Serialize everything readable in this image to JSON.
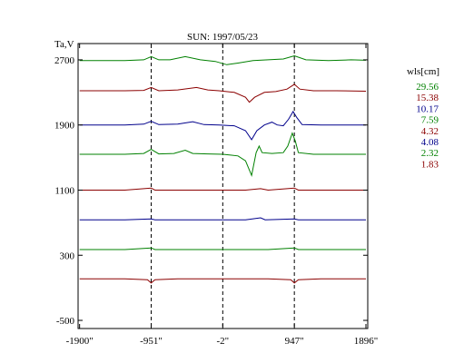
{
  "chart_data": {
    "type": "line",
    "title": "SUN: 1997/05/23",
    "ylabel": "Ta,V",
    "xlabel": "",
    "xlim": [
      -1920,
      1920
    ],
    "ylim": [
      -600,
      2900
    ],
    "xticks": [
      -1900,
      -951,
      -2,
      947,
      1896
    ],
    "xtick_labels": [
      "-1900\"",
      "-951\"",
      "-2\"",
      "947\"",
      "1896\""
    ],
    "yticks": [
      2700,
      1900,
      1100,
      300,
      -500
    ],
    "ytick_labels": [
      "2700",
      "1900",
      "1100",
      "300",
      "-500"
    ],
    "vlines": [
      -951,
      -2,
      947
    ],
    "grid": false,
    "legend": {
      "title": "wls[cm]",
      "placement": "right",
      "entries": [
        {
          "label": "29.56",
          "color": "#008000"
        },
        {
          "label": "15.38",
          "color": "#8b0000"
        },
        {
          "label": "10.17",
          "color": "#00008b"
        },
        {
          "label": "7.59",
          "color": "#008000"
        },
        {
          "label": "4.32",
          "color": "#8b0000"
        },
        {
          "label": "4.08",
          "color": "#00008b"
        },
        {
          "label": "2.32",
          "color": "#008000"
        },
        {
          "label": "1.83",
          "color": "#8b0000"
        }
      ]
    },
    "series": [
      {
        "name": "29.56",
        "color": "#008000",
        "points": [
          [
            -1900,
            2690
          ],
          [
            -1600,
            2690
          ],
          [
            -1300,
            2690
          ],
          [
            -1050,
            2700
          ],
          [
            -950,
            2740
          ],
          [
            -850,
            2700
          ],
          [
            -700,
            2700
          ],
          [
            -500,
            2740
          ],
          [
            -300,
            2700
          ],
          [
            -100,
            2680
          ],
          [
            50,
            2640
          ],
          [
            200,
            2660
          ],
          [
            400,
            2690
          ],
          [
            600,
            2700
          ],
          [
            800,
            2710
          ],
          [
            947,
            2750
          ],
          [
            1100,
            2700
          ],
          [
            1400,
            2690
          ],
          [
            1700,
            2700
          ],
          [
            1896,
            2695
          ]
        ]
      },
      {
        "name": "15.38",
        "color": "#8b0000",
        "points": [
          [
            -1900,
            2320
          ],
          [
            -1600,
            2320
          ],
          [
            -1300,
            2320
          ],
          [
            -1050,
            2325
          ],
          [
            -951,
            2360
          ],
          [
            -850,
            2320
          ],
          [
            -600,
            2330
          ],
          [
            -350,
            2360
          ],
          [
            -200,
            2330
          ],
          [
            -50,
            2320
          ],
          [
            150,
            2300
          ],
          [
            300,
            2240
          ],
          [
            350,
            2180
          ],
          [
            420,
            2240
          ],
          [
            550,
            2300
          ],
          [
            700,
            2310
          ],
          [
            850,
            2340
          ],
          [
            947,
            2400
          ],
          [
            1020,
            2340
          ],
          [
            1200,
            2320
          ],
          [
            1500,
            2320
          ],
          [
            1896,
            2315
          ]
        ]
      },
      {
        "name": "10.17",
        "color": "#00008b",
        "points": [
          [
            -1900,
            1900
          ],
          [
            -1600,
            1900
          ],
          [
            -1300,
            1900
          ],
          [
            -1050,
            1910
          ],
          [
            -951,
            1945
          ],
          [
            -850,
            1905
          ],
          [
            -600,
            1910
          ],
          [
            -400,
            1940
          ],
          [
            -250,
            1905
          ],
          [
            -50,
            1900
          ],
          [
            150,
            1890
          ],
          [
            300,
            1830
          ],
          [
            380,
            1720
          ],
          [
            450,
            1830
          ],
          [
            550,
            1900
          ],
          [
            650,
            1935
          ],
          [
            720,
            1900
          ],
          [
            800,
            1890
          ],
          [
            870,
            1970
          ],
          [
            930,
            2065
          ],
          [
            980,
            1990
          ],
          [
            1050,
            1905
          ],
          [
            1300,
            1900
          ],
          [
            1600,
            1900
          ],
          [
            1896,
            1900
          ]
        ]
      },
      {
        "name": "7.59",
        "color": "#008000",
        "points": [
          [
            -1900,
            1540
          ],
          [
            -1600,
            1540
          ],
          [
            -1300,
            1540
          ],
          [
            -1050,
            1550
          ],
          [
            -951,
            1600
          ],
          [
            -850,
            1545
          ],
          [
            -650,
            1550
          ],
          [
            -500,
            1590
          ],
          [
            -400,
            1550
          ],
          [
            -200,
            1545
          ],
          [
            0,
            1540
          ],
          [
            200,
            1520
          ],
          [
            300,
            1460
          ],
          [
            380,
            1280
          ],
          [
            440,
            1560
          ],
          [
            480,
            1640
          ],
          [
            520,
            1560
          ],
          [
            650,
            1550
          ],
          [
            800,
            1560
          ],
          [
            860,
            1640
          ],
          [
            920,
            1800
          ],
          [
            960,
            1700
          ],
          [
            1000,
            1560
          ],
          [
            1200,
            1540
          ],
          [
            1500,
            1540
          ],
          [
            1896,
            1540
          ]
        ]
      },
      {
        "name": "4.32",
        "color": "#8b0000",
        "points": [
          [
            -1900,
            1100
          ],
          [
            -1600,
            1100
          ],
          [
            -1300,
            1100
          ],
          [
            -951,
            1125
          ],
          [
            -900,
            1100
          ],
          [
            -600,
            1100
          ],
          [
            -300,
            1100
          ],
          [
            0,
            1100
          ],
          [
            300,
            1100
          ],
          [
            500,
            1118
          ],
          [
            600,
            1100
          ],
          [
            947,
            1125
          ],
          [
            1000,
            1100
          ],
          [
            1300,
            1100
          ],
          [
            1896,
            1100
          ]
        ]
      },
      {
        "name": "4.08",
        "color": "#00008b",
        "points": [
          [
            -1900,
            735
          ],
          [
            -1600,
            735
          ],
          [
            -1300,
            735
          ],
          [
            -951,
            745
          ],
          [
            -900,
            735
          ],
          [
            -600,
            735
          ],
          [
            -300,
            735
          ],
          [
            0,
            735
          ],
          [
            300,
            735
          ],
          [
            500,
            760
          ],
          [
            560,
            735
          ],
          [
            947,
            745
          ],
          [
            1000,
            735
          ],
          [
            1300,
            735
          ],
          [
            1896,
            735
          ]
        ]
      },
      {
        "name": "2.32",
        "color": "#008000",
        "points": [
          [
            -1900,
            370
          ],
          [
            -1600,
            370
          ],
          [
            -1300,
            370
          ],
          [
            -951,
            390
          ],
          [
            -900,
            370
          ],
          [
            -600,
            370
          ],
          [
            -300,
            370
          ],
          [
            0,
            370
          ],
          [
            300,
            370
          ],
          [
            600,
            370
          ],
          [
            947,
            390
          ],
          [
            1000,
            370
          ],
          [
            1300,
            370
          ],
          [
            1896,
            370
          ]
        ]
      },
      {
        "name": "1.83",
        "color": "#8b0000",
        "points": [
          [
            -1900,
            10
          ],
          [
            -1600,
            10
          ],
          [
            -1300,
            10
          ],
          [
            -1000,
            0
          ],
          [
            -951,
            -40
          ],
          [
            -900,
            0
          ],
          [
            -600,
            10
          ],
          [
            -300,
            10
          ],
          [
            0,
            10
          ],
          [
            300,
            10
          ],
          [
            600,
            10
          ],
          [
            900,
            0
          ],
          [
            947,
            -40
          ],
          [
            1000,
            0
          ],
          [
            1300,
            10
          ],
          [
            1896,
            10
          ]
        ]
      }
    ]
  }
}
